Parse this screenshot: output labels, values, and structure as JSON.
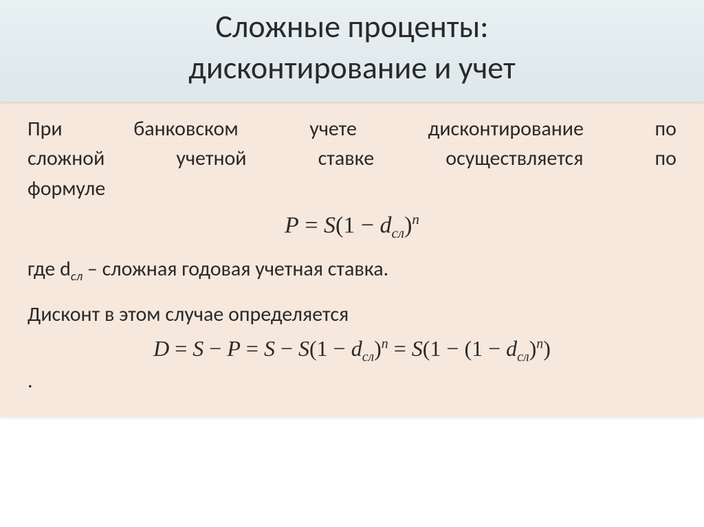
{
  "colors": {
    "title_bg_top": "#e8f0f2",
    "title_bg_bottom": "#dce8ea",
    "body_bg": "#f7e8de",
    "text": "#2a2a2a"
  },
  "title": {
    "line1": "Сложные проценты:",
    "line2": "дисконтирование и учет",
    "fontsize": 46
  },
  "body": {
    "para1_line1": "При банковском учете дисконтирование по",
    "para1_line2": "сложной учетной ставке осуществляется по",
    "para1_line3": "формуле",
    "formula1": {
      "lhs": "P",
      "eq": " = ",
      "rhs_S": "S",
      "open": "(1 − ",
      "d": "d",
      "d_sub": "сл",
      "close": ")",
      "exp": "n"
    },
    "para2_prefix": "где ",
    "para2_d": "d",
    "para2_dsub": "сл",
    "para2_rest": " – сложная годовая учетная ставка.",
    "para3": "Дисконт в этом случае определяется",
    "formula2": {
      "D": "D",
      "eq": " = ",
      "S": "S",
      "minus": " − ",
      "P": "P",
      "open": "(1 − ",
      "d": "d",
      "d_sub": "сл",
      "close": ")",
      "exp": "n",
      "open2": "(1 − (1 − ",
      "close2": ")"
    },
    "dot": ".",
    "fontsize": 30,
    "formula_fontsize": 34
  }
}
